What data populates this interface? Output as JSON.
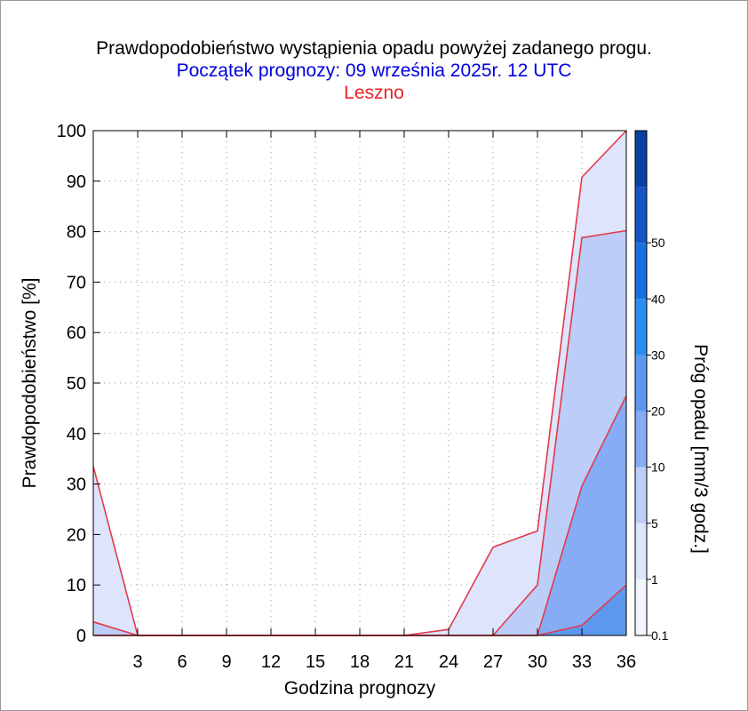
{
  "header": {
    "title": "Prawdopodobieństwo wystąpienia opadu powyżej zadanego progu.",
    "subtitle": "Początek prognozy: 09 września 2025r. 12 UTC",
    "location": "Leszno"
  },
  "chart_data": {
    "type": "area",
    "title": "Prawdopodobieństwo wystąpienia opadu powyżej zadanego progu.",
    "subtitle": "Początek prognozy: 09 września 2025r. 12 UTC",
    "location": "Leszno",
    "xlabel": "Godzina prognozy",
    "ylabel": "Prawdopodobieństwo [%]",
    "colorbar_label": "Próg opadu [mm/3 godz.]",
    "x": [
      0,
      3,
      6,
      9,
      12,
      15,
      18,
      21,
      24,
      27,
      30,
      33,
      36
    ],
    "xticks": [
      "3",
      "6",
      "9",
      "12",
      "15",
      "18",
      "21",
      "24",
      "27",
      "30",
      "33",
      "36"
    ],
    "yticks": [
      "0",
      "10",
      "20",
      "30",
      "40",
      "50",
      "60",
      "70",
      "80",
      "90",
      "100"
    ],
    "xlim": [
      0,
      36
    ],
    "ylim": [
      0,
      100
    ],
    "grid": true,
    "series": [
      {
        "threshold": "0.1",
        "color": "#dde4fb",
        "values": [
          33.5,
          0,
          0,
          0,
          0,
          0,
          0,
          0,
          1.2,
          17.5,
          20.7,
          90.8,
          100
        ]
      },
      {
        "threshold": "1",
        "color": "#bccdf7",
        "values": [
          2.7,
          0,
          0,
          0,
          0,
          0,
          0,
          0,
          0,
          0,
          10,
          78.8,
          80.2
        ]
      },
      {
        "threshold": "5",
        "color": "#86acf5",
        "values": [
          0,
          0,
          0,
          0,
          0,
          0,
          0,
          0,
          0,
          0,
          0,
          29.6,
          47.5
        ]
      },
      {
        "threshold": "10",
        "color": "#5d98ef",
        "values": [
          0,
          0,
          0,
          0,
          0,
          0,
          0,
          0,
          0,
          0,
          0,
          2,
          10
        ]
      }
    ],
    "colorbar": {
      "labels": [
        "0.1",
        "1",
        "5",
        "10",
        "20",
        "30",
        "40",
        "50"
      ],
      "colors": [
        "#f4f6fe",
        "#dde4fb",
        "#bccdf7",
        "#86acf5",
        "#5d98ef",
        "#2a8ef0",
        "#1a70de",
        "#1556c4",
        "#0b3fa2"
      ]
    }
  }
}
